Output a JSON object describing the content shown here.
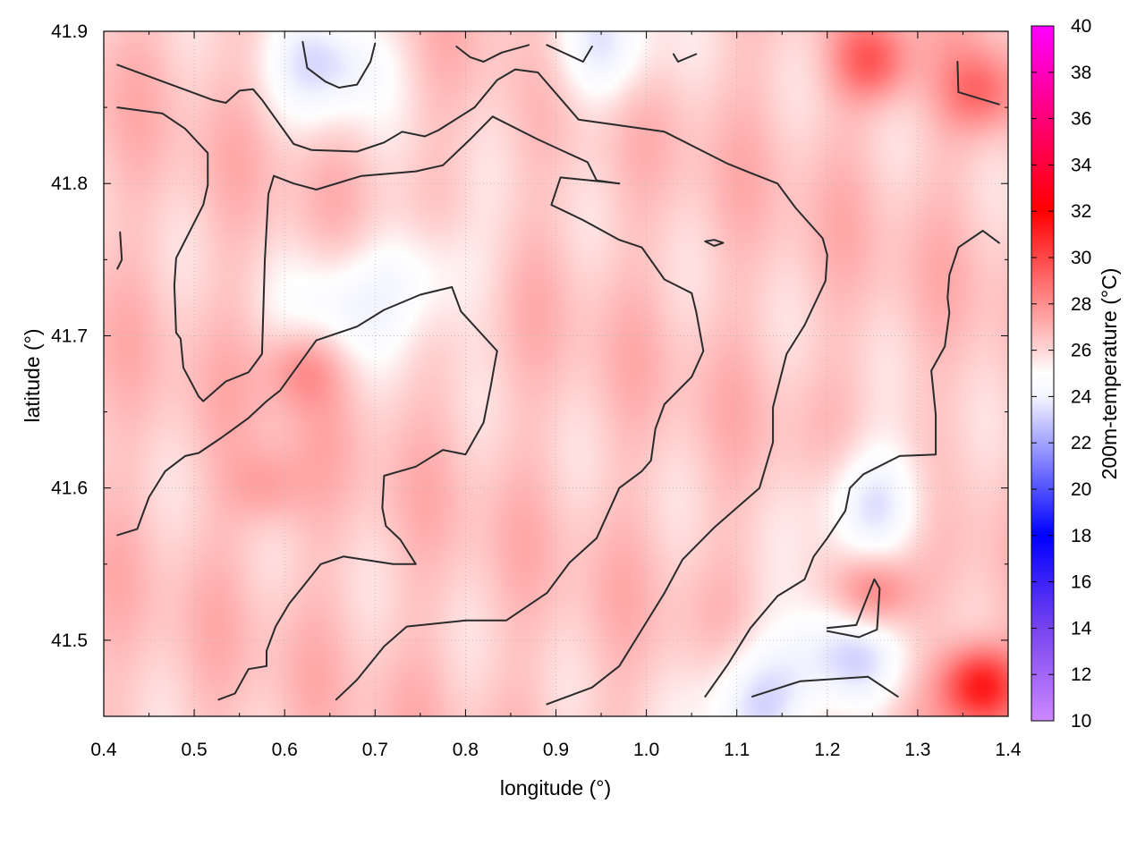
{
  "chart_data": {
    "type": "heatmap",
    "xlabel": "longitude (°)",
    "ylabel": "latitude (°)",
    "colorbar_label": "200m-temperature (°C)",
    "xlim": [
      0.4,
      1.4
    ],
    "ylim": [
      41.45,
      41.9
    ],
    "x_ticks": [
      0.4,
      0.5,
      0.6,
      0.7,
      0.8,
      0.9,
      1.0,
      1.1,
      1.2,
      1.3,
      1.4
    ],
    "x_tick_labels": [
      "0.4",
      "0.5",
      "0.6",
      "0.7",
      "0.8",
      "0.9",
      "1.0",
      "1.1",
      "1.2",
      "1.3",
      "1.4"
    ],
    "y_ticks": [
      41.5,
      41.6,
      41.7,
      41.8,
      41.9
    ],
    "y_tick_labels": [
      "41.5",
      "41.6",
      "41.7",
      "41.8",
      "41.9"
    ],
    "colorbar_range": [
      10,
      40
    ],
    "colorbar_ticks": [
      10,
      12,
      14,
      16,
      18,
      20,
      22,
      24,
      26,
      28,
      30,
      32,
      34,
      36,
      38,
      40
    ],
    "colorbar_tick_labels": [
      "10",
      "12",
      "14",
      "16",
      "18",
      "20",
      "22",
      "24",
      "26",
      "28",
      "30",
      "32",
      "34",
      "36",
      "38",
      "40"
    ],
    "colormap": [
      {
        "value": 10,
        "color": "#cc88ff"
      },
      {
        "value": 14,
        "color": "#7744ee"
      },
      {
        "value": 18,
        "color": "#0000ff"
      },
      {
        "value": 24,
        "color": "#f4f4ff"
      },
      {
        "value": 25,
        "color": "#ffffff"
      },
      {
        "value": 26,
        "color": "#ffd6d6"
      },
      {
        "value": 32,
        "color": "#ff0000"
      },
      {
        "value": 36,
        "color": "#ff0077"
      },
      {
        "value": 40,
        "color": "#ff00ff"
      }
    ],
    "grid": true,
    "field_summary": {
      "typical_value": 26.5,
      "cool_regions": [
        {
          "lon": 0.65,
          "lat": 41.88,
          "value": 23.5
        },
        {
          "lon": 0.95,
          "lat": 41.89,
          "value": 24.0
        },
        {
          "lon": 0.66,
          "lat": 41.72,
          "value": 24.5
        },
        {
          "lon": 0.76,
          "lat": 41.74,
          "value": 24.5
        },
        {
          "lon": 1.22,
          "lat": 41.49,
          "value": 23.0
        },
        {
          "lon": 1.25,
          "lat": 41.59,
          "value": 23.5
        },
        {
          "lon": 1.12,
          "lat": 41.46,
          "value": 23.5
        }
      ],
      "warm_regions": [
        {
          "lon": 1.37,
          "lat": 41.47,
          "value": 32.0
        },
        {
          "lon": 1.37,
          "lat": 41.86,
          "value": 29.0
        },
        {
          "lon": 1.25,
          "lat": 41.88,
          "value": 29.5
        },
        {
          "lon": 1.25,
          "lat": 41.53,
          "value": 30.0
        },
        {
          "lon": 0.62,
          "lat": 41.68,
          "value": 28.5
        },
        {
          "lon": 0.58,
          "lat": 41.6,
          "value": 28.0
        }
      ]
    },
    "contours": [
      [
        [
          0.415,
          41.878
        ],
        [
          0.52,
          41.855
        ],
        [
          0.535,
          41.853
        ],
        [
          0.55,
          41.861
        ],
        [
          0.565,
          41.862
        ],
        [
          0.575,
          41.855
        ],
        [
          0.61,
          41.826
        ],
        [
          0.63,
          41.822
        ],
        [
          0.68,
          41.821
        ],
        [
          0.71,
          41.827
        ],
        [
          0.73,
          41.834
        ],
        [
          0.755,
          41.831
        ],
        [
          0.77,
          41.835
        ],
        [
          0.81,
          41.85
        ],
        [
          0.835,
          41.868
        ],
        [
          0.855,
          41.875
        ],
        [
          0.88,
          41.873
        ],
        [
          0.925,
          41.842
        ],
        [
          1.02,
          41.834
        ],
        [
          1.09,
          41.813
        ],
        [
          1.115,
          41.807
        ],
        [
          1.145,
          41.8
        ],
        [
          1.165,
          41.784
        ],
        [
          1.195,
          41.764
        ],
        [
          1.2,
          41.753
        ],
        [
          1.198,
          41.736
        ],
        [
          1.175,
          41.707
        ],
        [
          1.155,
          41.688
        ],
        [
          1.14,
          41.653
        ],
        [
          1.14,
          41.63
        ],
        [
          1.125,
          41.6
        ],
        [
          1.075,
          41.574
        ],
        [
          1.04,
          41.553
        ],
        [
          1.02,
          41.531
        ],
        [
          0.995,
          41.507
        ],
        [
          0.97,
          41.483
        ],
        [
          0.94,
          41.469
        ],
        [
          0.89,
          41.458
        ]
      ],
      [
        [
          0.415,
          41.85
        ],
        [
          0.465,
          41.846
        ],
        [
          0.49,
          41.836
        ],
        [
          0.515,
          41.82
        ],
        [
          0.515,
          41.799
        ],
        [
          0.51,
          41.786
        ],
        [
          0.48,
          41.751
        ],
        [
          0.478,
          41.733
        ],
        [
          0.48,
          41.702
        ],
        [
          0.485,
          41.698
        ],
        [
          0.488,
          41.679
        ],
        [
          0.505,
          41.66
        ],
        [
          0.51,
          41.657
        ],
        [
          0.535,
          41.67
        ],
        [
          0.56,
          41.676
        ],
        [
          0.575,
          41.688
        ],
        [
          0.578,
          41.749
        ],
        [
          0.582,
          41.793
        ],
        [
          0.588,
          41.805
        ],
        [
          0.61,
          41.8
        ],
        [
          0.635,
          41.796
        ],
        [
          0.685,
          41.805
        ],
        [
          0.745,
          41.808
        ],
        [
          0.775,
          41.812
        ],
        [
          0.805,
          41.829
        ],
        [
          0.83,
          41.844
        ],
        [
          0.88,
          41.829
        ],
        [
          0.935,
          41.814
        ],
        [
          0.945,
          41.802
        ],
        [
          0.97,
          41.8
        ],
        [
          0.955,
          41.801
        ],
        [
          0.905,
          41.804
        ],
        [
          0.895,
          41.786
        ],
        [
          0.93,
          41.776
        ],
        [
          0.97,
          41.763
        ],
        [
          0.995,
          41.758
        ],
        [
          1.02,
          41.737
        ],
        [
          1.05,
          41.728
        ],
        [
          1.055,
          41.716
        ],
        [
          1.063,
          41.69
        ],
        [
          1.05,
          41.673
        ],
        [
          1.02,
          41.655
        ],
        [
          1.01,
          41.639
        ],
        [
          1.005,
          41.618
        ],
        [
          0.995,
          41.611
        ],
        [
          0.97,
          41.6
        ],
        [
          0.945,
          41.567
        ],
        [
          0.915,
          41.551
        ],
        [
          0.89,
          41.531
        ],
        [
          0.845,
          41.513
        ],
        [
          0.8,
          41.513
        ],
        [
          0.735,
          41.509
        ],
        [
          0.71,
          41.496
        ],
        [
          0.68,
          41.474
        ],
        [
          0.657,
          41.461
        ]
      ],
      [
        [
          0.415,
          41.569
        ],
        [
          0.437,
          41.573
        ],
        [
          0.45,
          41.594
        ],
        [
          0.468,
          41.611
        ],
        [
          0.49,
          41.621
        ],
        [
          0.505,
          41.623
        ],
        [
          0.53,
          41.633
        ],
        [
          0.56,
          41.646
        ],
        [
          0.58,
          41.657
        ],
        [
          0.595,
          41.664
        ],
        [
          0.635,
          41.697
        ],
        [
          0.65,
          41.7
        ],
        [
          0.68,
          41.706
        ],
        [
          0.71,
          41.717
        ],
        [
          0.75,
          41.727
        ],
        [
          0.785,
          41.732
        ],
        [
          0.795,
          41.716
        ],
        [
          0.835,
          41.69
        ],
        [
          0.833,
          41.684
        ],
        [
          0.828,
          41.667
        ],
        [
          0.82,
          41.643
        ],
        [
          0.8,
          41.622
        ],
        [
          0.775,
          41.625
        ],
        [
          0.745,
          41.614
        ],
        [
          0.71,
          41.608
        ],
        [
          0.708,
          41.587
        ],
        [
          0.712,
          41.575
        ],
        [
          0.728,
          41.566
        ],
        [
          0.745,
          41.55
        ],
        [
          0.72,
          41.55
        ],
        [
          0.665,
          41.555
        ],
        [
          0.64,
          41.55
        ],
        [
          0.62,
          41.535
        ],
        [
          0.605,
          41.524
        ],
        [
          0.59,
          41.509
        ],
        [
          0.58,
          41.493
        ],
        [
          0.58,
          41.483
        ],
        [
          0.56,
          41.481
        ],
        [
          0.545,
          41.465
        ],
        [
          0.527,
          41.461
        ]
      ],
      [
        [
          0.62,
          41.893
        ],
        [
          0.625,
          41.876
        ],
        [
          0.645,
          41.867
        ],
        [
          0.66,
          41.863
        ],
        [
          0.68,
          41.865
        ],
        [
          0.695,
          41.88
        ],
        [
          0.7,
          41.892
        ]
      ],
      [
        [
          0.79,
          41.89
        ],
        [
          0.805,
          41.883
        ],
        [
          0.82,
          41.88
        ],
        [
          0.84,
          41.886
        ],
        [
          0.87,
          41.891
        ]
      ],
      [
        [
          0.89,
          41.891
        ],
        [
          0.93,
          41.88
        ],
        [
          0.94,
          41.89
        ]
      ],
      [
        [
          1.03,
          41.885
        ],
        [
          1.035,
          41.88
        ],
        [
          1.055,
          41.885
        ]
      ],
      [
        [
          1.344,
          41.88
        ],
        [
          1.345,
          41.86
        ],
        [
          1.39,
          41.852
        ]
      ],
      [
        [
          0.418,
          41.768
        ],
        [
          0.42,
          41.75
        ],
        [
          0.415,
          41.744
        ]
      ],
      [
        [
          1.065,
          41.762
        ],
        [
          1.075,
          41.763
        ],
        [
          1.085,
          41.761
        ],
        [
          1.075,
          41.759
        ],
        [
          1.065,
          41.762
        ]
      ],
      [
        [
          1.39,
          41.761
        ],
        [
          1.372,
          41.769
        ],
        [
          1.345,
          41.758
        ],
        [
          1.335,
          41.74
        ],
        [
          1.333,
          41.725
        ],
        [
          1.335,
          41.715
        ],
        [
          1.33,
          41.693
        ],
        [
          1.315,
          41.677
        ],
        [
          1.32,
          41.648
        ],
        [
          1.32,
          41.622
        ],
        [
          1.28,
          41.621
        ],
        [
          1.24,
          41.609
        ],
        [
          1.225,
          41.6
        ],
        [
          1.22,
          41.585
        ],
        [
          1.2,
          41.567
        ],
        [
          1.185,
          41.555
        ],
        [
          1.175,
          41.54
        ],
        [
          1.145,
          41.529
        ],
        [
          1.115,
          41.508
        ],
        [
          1.09,
          41.484
        ],
        [
          1.065,
          41.463
        ]
      ],
      [
        [
          1.2,
          41.506
        ],
        [
          1.235,
          41.502
        ],
        [
          1.255,
          41.507
        ],
        [
          1.258,
          41.534
        ],
        [
          1.252,
          41.54
        ],
        [
          1.232,
          41.51
        ],
        [
          1.2,
          41.508
        ]
      ],
      [
        [
          1.117,
          41.463
        ],
        [
          1.17,
          41.473
        ],
        [
          1.245,
          41.476
        ],
        [
          1.278,
          41.463
        ]
      ]
    ]
  }
}
